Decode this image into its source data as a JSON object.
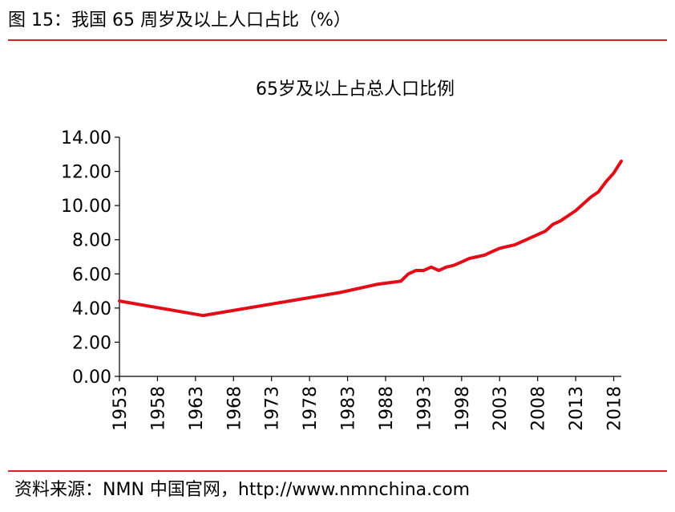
{
  "figure": {
    "title": "图 15：我国 65 周岁及以上人口占比（%）",
    "source": "资料来源：NMN 中国官网，http://www.nmnchina.com"
  },
  "colors": {
    "accent": "#d92027",
    "line": "#e30d18",
    "axis": "#000000"
  },
  "chart_data": {
    "type": "line",
    "title": "65岁及以上占总人口比例",
    "xlabel": "",
    "ylabel": "",
    "xlim": [
      1953,
      2019
    ],
    "ylim": [
      0,
      14
    ],
    "y_ticks": [
      "0.00",
      "2.00",
      "4.00",
      "6.00",
      "8.00",
      "10.00",
      "12.00",
      "14.00"
    ],
    "x_ticks": [
      "1953",
      "1958",
      "1963",
      "1968",
      "1973",
      "1978",
      "1983",
      "1988",
      "1993",
      "1998",
      "2003",
      "2008",
      "2013",
      "2018"
    ],
    "grid": false,
    "legend": "none",
    "series": [
      {
        "name": "65岁及以上占总人口比例",
        "x": [
          1953,
          1964,
          1982,
          1987,
          1990,
          1991,
          1992,
          1993,
          1994,
          1995,
          1996,
          1997,
          1998,
          1999,
          2000,
          2001,
          2002,
          2003,
          2004,
          2005,
          2006,
          2007,
          2008,
          2009,
          2010,
          2011,
          2012,
          2013,
          2014,
          2015,
          2016,
          2017,
          2018,
          2019
        ],
        "values": [
          4.41,
          3.56,
          4.91,
          5.4,
          5.57,
          6.0,
          6.2,
          6.2,
          6.4,
          6.2,
          6.4,
          6.5,
          6.7,
          6.9,
          7.0,
          7.1,
          7.3,
          7.5,
          7.6,
          7.7,
          7.9,
          8.1,
          8.3,
          8.5,
          8.9,
          9.1,
          9.4,
          9.7,
          10.1,
          10.5,
          10.8,
          11.4,
          11.9,
          12.6
        ]
      }
    ]
  }
}
